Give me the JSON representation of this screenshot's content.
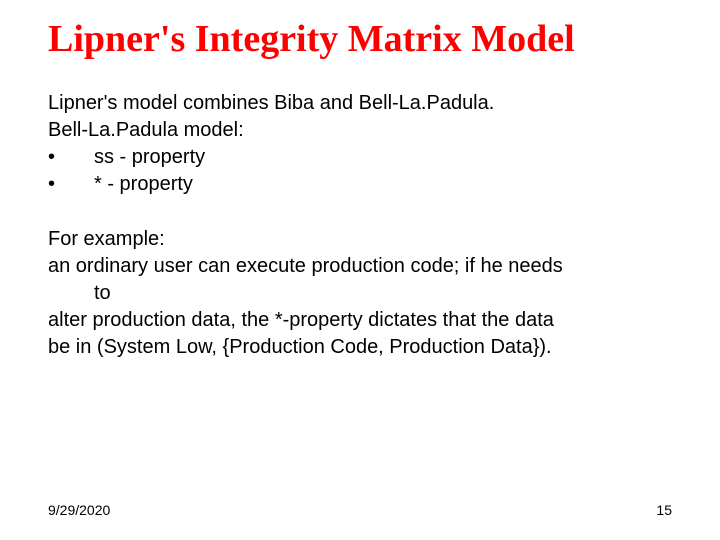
{
  "title": "Lipner's Integrity Matrix Model",
  "block1": {
    "line1": "Lipner's model combines Biba and Bell-La.Padula.",
    "line2": "Bell-La.Padula model:",
    "bullets": [
      {
        "mark": "•",
        "text": "ss - property"
      },
      {
        "mark": "•",
        "text": "* - property"
      }
    ]
  },
  "block2": {
    "line1": "For example:",
    "line2": "an ordinary user can execute production code; if he needs",
    "line2b": "to",
    "line3": "alter production data, the *-property dictates that the data",
    "line4": "be in (System Low, {Production Code, Production Data})."
  },
  "footer": {
    "date": "9/29/2020",
    "page": "15"
  },
  "colors": {
    "title": "#ff0000",
    "body": "#000000",
    "background": "#ffffff"
  },
  "fonts": {
    "title_family": "Comic Sans MS",
    "title_size_pt": 38,
    "title_weight": "bold",
    "body_family": "Arial",
    "body_size_pt": 20,
    "footer_size_pt": 14
  }
}
